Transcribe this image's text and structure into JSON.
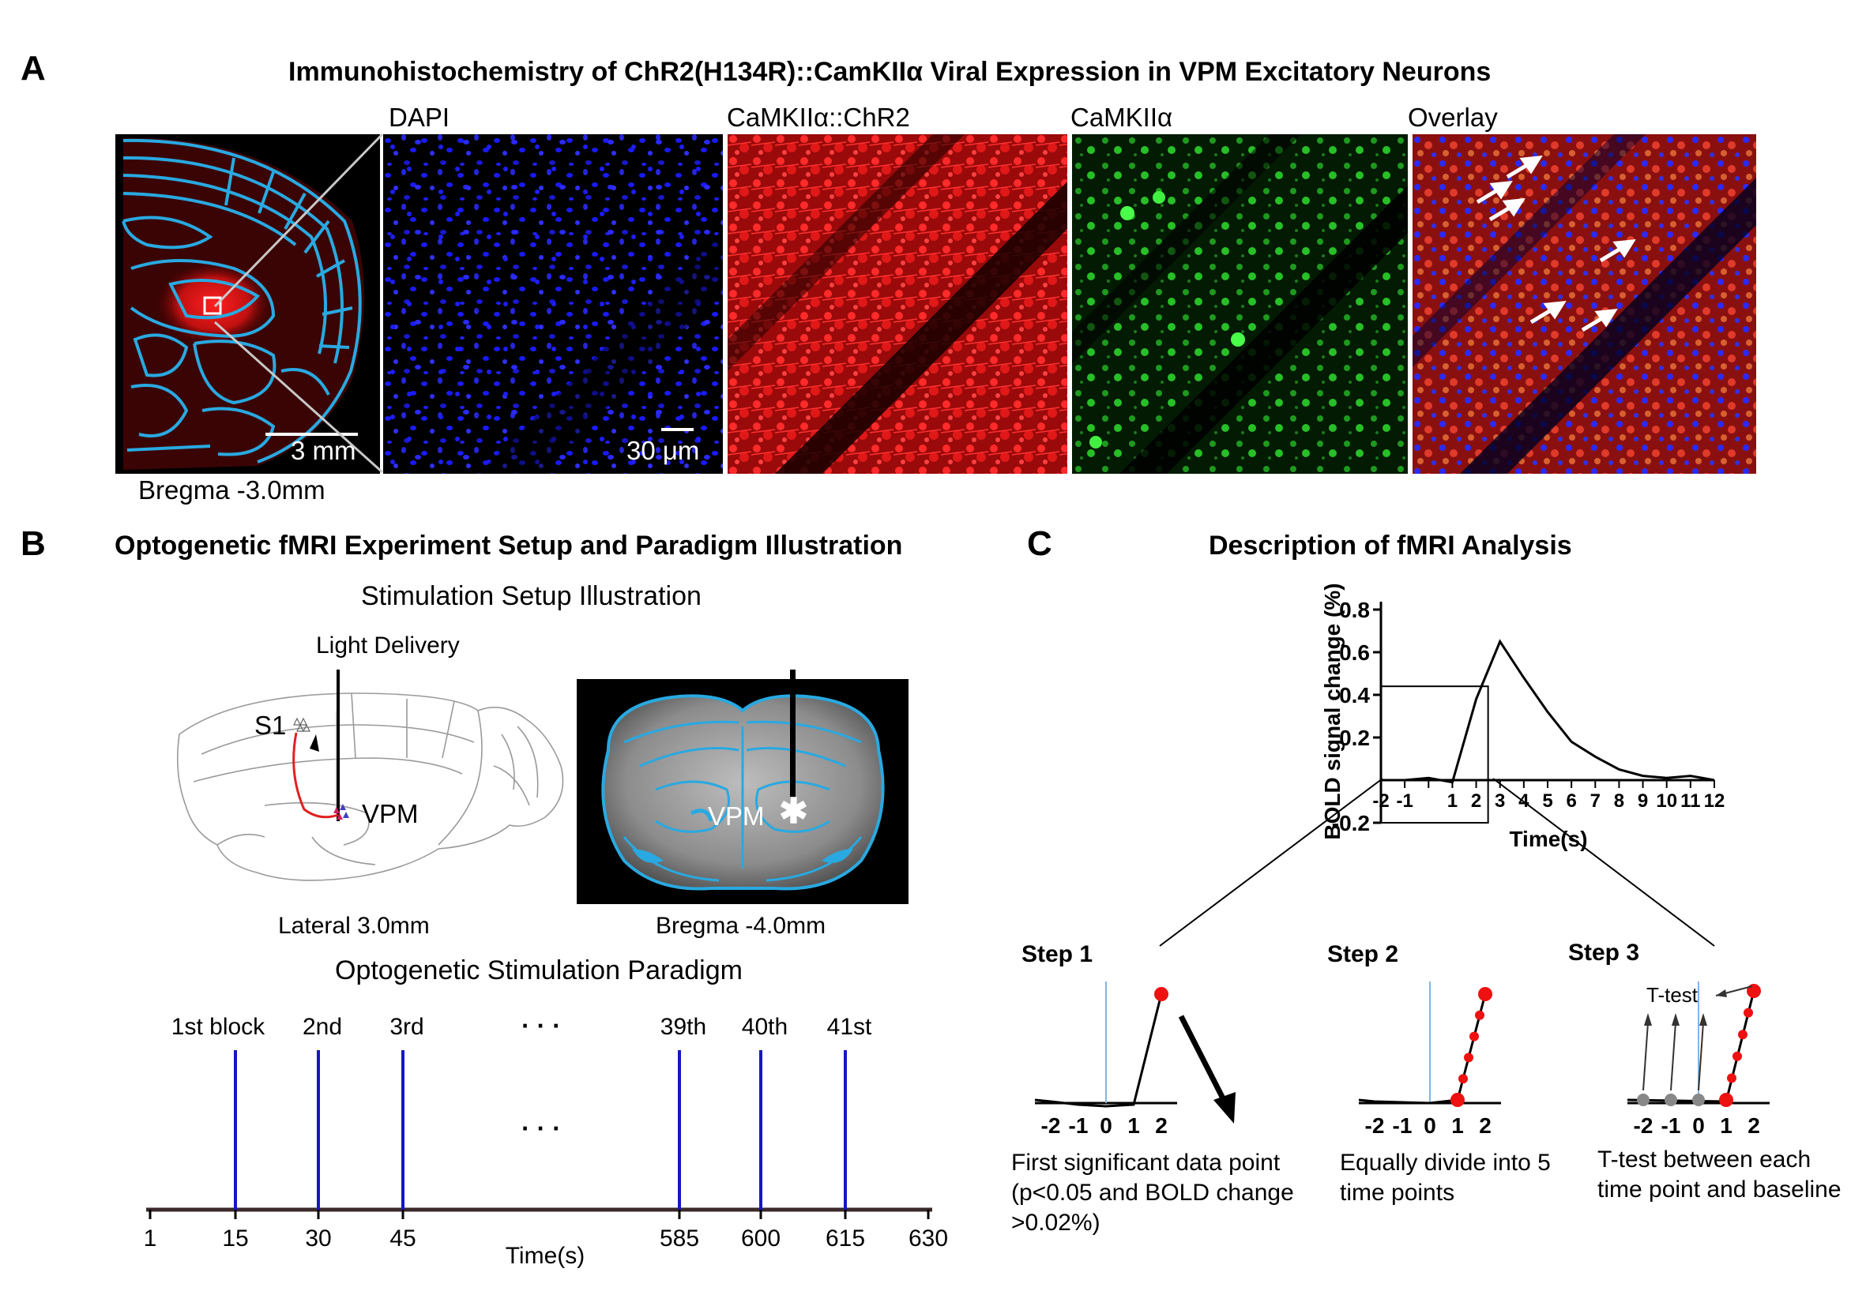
{
  "panel_a": {
    "letter": "A",
    "title": "Immunohistochemistry of ChR2(H134R)::CamKIIα Viral Expression in VPM Excitatory Neurons",
    "channels": [
      "DAPI",
      "CaMKIIα::ChR2",
      "CaMKIIα",
      "Overlay"
    ],
    "scale_atlas": "3 mm",
    "scale_micro": "30 μm",
    "bregma": "Bregma -3.0mm",
    "colors": {
      "dapi": "#1a1aff",
      "chr2": "#ff1a1a",
      "camk": "#22ee22",
      "atlas": "#29a9e1"
    }
  },
  "panel_b": {
    "letter": "B",
    "title": "Optogenetic fMRI Experiment Setup and Paradigm Illustration",
    "setup_title": "Stimulation Setup Illustration",
    "light_delivery": "Light Delivery",
    "s1": "S1",
    "vpm": "VPM",
    "lateral": "Lateral 3.0mm",
    "bregma": "Bregma -4.0mm",
    "paradigm_title": "Optogenetic Stimulation Paradigm",
    "block_labels": [
      "1st block",
      "2nd",
      "3rd",
      "39th",
      "40th",
      "41st"
    ],
    "ellipsis": "· · ·",
    "axis_ticks": [
      "1",
      "15",
      "30",
      "45",
      "585",
      "600",
      "615",
      "630"
    ],
    "xlabel": "Time(s)",
    "stim_color": "#1515c8"
  },
  "panel_c": {
    "letter": "C",
    "title": "Description of fMRI Analysis",
    "chart_data": {
      "type": "line",
      "title": "",
      "xlabel": "Time(s)",
      "ylabel": "BOLD signal change (%)",
      "x": [
        -2,
        -1,
        0,
        1,
        2,
        3,
        4,
        5,
        6,
        7,
        8,
        9,
        10,
        11,
        12
      ],
      "series": [
        {
          "values": [
            0.0,
            0.0,
            0.01,
            -0.01,
            0.38,
            0.65,
            0.48,
            0.32,
            0.18,
            0.11,
            0.05,
            0.02,
            0.01,
            0.02,
            0.0
          ]
        }
      ],
      "xticks": [
        "-2",
        "-1",
        "1",
        "2",
        "3",
        "4",
        "5",
        "6",
        "7",
        "8",
        "9",
        "10",
        "11",
        "12"
      ],
      "yticks": [
        "-0.2",
        "0.2",
        "0.4",
        "0.6",
        "0.8"
      ],
      "xlim": [
        -2,
        12
      ],
      "ylim": [
        -0.2,
        0.8
      ],
      "grid": false
    },
    "steps": [
      {
        "title": "Step 1",
        "desc": [
          "First significant data point",
          "(p<0.05 and BOLD change",
          ">0.02%)"
        ]
      },
      {
        "title": "Step 2",
        "desc": [
          "Equally divide into 5",
          "time points"
        ]
      },
      {
        "title": "Step 3",
        "desc": [
          "T-test between each",
          "time point and baseline"
        ]
      }
    ],
    "ttest": "T-test",
    "mini_ticks": [
      "-2",
      "-1",
      "0",
      "1",
      "2"
    ],
    "marker_color": "#ee1111",
    "baseline_color": "#7fb6e8"
  }
}
